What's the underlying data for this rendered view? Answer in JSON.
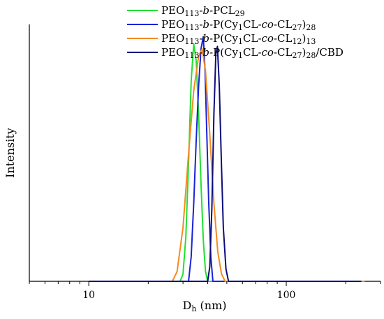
{
  "chart_data": {
    "type": "line",
    "xscale": "log",
    "xlim": [
      5,
      300
    ],
    "ylim": [
      0,
      1.05
    ],
    "x_ticks": [
      10,
      100
    ],
    "x_tick_labels": [
      "10",
      "100"
    ],
    "xlabel": {
      "main": "D",
      "sub": "h",
      "rest": " (nm)"
    },
    "ylabel": "Intensity",
    "grid": false,
    "legend_position": "top-left",
    "series": [
      {
        "name_parts": [
          [
            "PEO",
            ""
          ],
          [
            "113",
            "sub"
          ],
          [
            "-",
            ""
          ],
          [
            "b",
            "it"
          ],
          [
            "-PCL",
            ""
          ],
          [
            "29",
            "sub"
          ]
        ],
        "color": "#22e033",
        "points": [
          [
            10,
            0
          ],
          [
            29,
            0
          ],
          [
            30,
            0.03
          ],
          [
            31,
            0.18
          ],
          [
            32,
            0.48
          ],
          [
            33,
            0.82
          ],
          [
            34,
            0.97
          ],
          [
            35,
            0.9
          ],
          [
            36,
            0.68
          ],
          [
            37,
            0.4
          ],
          [
            38,
            0.17
          ],
          [
            39,
            0.04
          ],
          [
            40,
            0
          ],
          [
            200,
            0
          ]
        ]
      },
      {
        "name_parts": [
          [
            "PEO",
            ""
          ],
          [
            "113",
            "sub"
          ],
          [
            "-",
            ""
          ],
          [
            "b",
            "it"
          ],
          [
            "-P(Cy",
            ""
          ],
          [
            "1",
            "sub"
          ],
          [
            "CL-",
            ""
          ],
          [
            "co",
            "it"
          ],
          [
            "-CL",
            ""
          ],
          [
            "27",
            "sub"
          ],
          [
            ")",
            ""
          ],
          [
            "28",
            "sub"
          ]
        ],
        "color": "#1a22d8",
        "points": [
          [
            10,
            0
          ],
          [
            32,
            0
          ],
          [
            33,
            0.1
          ],
          [
            34,
            0.32
          ],
          [
            35,
            0.58
          ],
          [
            36,
            0.8
          ],
          [
            37,
            0.95
          ],
          [
            38,
            1.0
          ],
          [
            38.8,
            0.86
          ],
          [
            39.6,
            0.6
          ],
          [
            40.5,
            0.32
          ],
          [
            41.5,
            0.1
          ],
          [
            42.5,
            0
          ],
          [
            200,
            0
          ]
        ]
      },
      {
        "name_parts": [
          [
            "PEO",
            ""
          ],
          [
            "113",
            "sub"
          ],
          [
            "-",
            ""
          ],
          [
            "b",
            "it"
          ],
          [
            "-P(Cy",
            ""
          ],
          [
            "1",
            "sub"
          ],
          [
            "CL-",
            ""
          ],
          [
            "co",
            "it"
          ],
          [
            "-CL",
            ""
          ],
          [
            "12",
            "sub"
          ],
          [
            ")",
            ""
          ],
          [
            "13",
            "sub"
          ]
        ],
        "color": "#f58a1f",
        "points": [
          [
            10,
            0
          ],
          [
            26.5,
            0
          ],
          [
            28,
            0.04
          ],
          [
            30,
            0.22
          ],
          [
            32,
            0.52
          ],
          [
            34,
            0.78
          ],
          [
            36,
            0.92
          ],
          [
            37.5,
            0.95
          ],
          [
            39,
            0.86
          ],
          [
            41,
            0.6
          ],
          [
            43,
            0.32
          ],
          [
            45,
            0.12
          ],
          [
            47,
            0.03
          ],
          [
            49,
            0
          ],
          [
            250,
            0
          ]
        ]
      },
      {
        "name_parts": [
          [
            "PEO",
            ""
          ],
          [
            "113",
            "sub"
          ],
          [
            "-",
            ""
          ],
          [
            "b",
            "it"
          ],
          [
            "-P(Cy",
            ""
          ],
          [
            "1",
            "sub"
          ],
          [
            "CL-",
            ""
          ],
          [
            "co",
            "it"
          ],
          [
            "-CL",
            ""
          ],
          [
            "27",
            "sub"
          ],
          [
            ")",
            ""
          ],
          [
            "28",
            "sub"
          ],
          [
            "/CBD",
            ""
          ]
        ],
        "color": "#0d0d7a",
        "points": [
          [
            10,
            0
          ],
          [
            40,
            0
          ],
          [
            41,
            0.06
          ],
          [
            42,
            0.3
          ],
          [
            43,
            0.68
          ],
          [
            44,
            0.93
          ],
          [
            44.8,
            0.96
          ],
          [
            45.8,
            0.8
          ],
          [
            46.8,
            0.52
          ],
          [
            48,
            0.22
          ],
          [
            49.5,
            0.05
          ],
          [
            51,
            0
          ],
          [
            240,
            0
          ]
        ]
      }
    ]
  }
}
